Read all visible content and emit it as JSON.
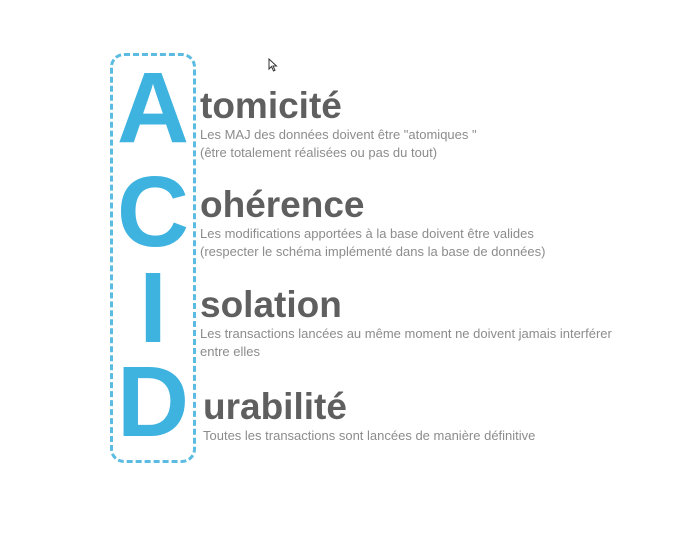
{
  "acronym": {
    "letters": [
      "A",
      "C",
      "I",
      "D"
    ]
  },
  "items": [
    {
      "rest": "tomicité",
      "lines": [
        "Les MAJ des données doivent être \"atomiques \"",
        "(être totalement réalisées ou pas du tout)"
      ]
    },
    {
      "rest": "ohérence",
      "lines": [
        "Les modifications apportées à la base doivent être valides",
        "(respecter le schéma implémenté dans la base de données)"
      ]
    },
    {
      "rest": "solation",
      "lines": [
        "Les transactions lancées au même moment ne doivent jamais interférer",
        "entre elles"
      ]
    },
    {
      "rest": "urabilité",
      "lines": [
        "Toutes les transactions sont lancées de manière définitive"
      ]
    }
  ],
  "colors": {
    "accent": "#3fb3e0",
    "heading": "#5f5f5f",
    "description": "#8c8c8c"
  },
  "icons": {
    "pointer": "mouse-pointer-icon"
  }
}
